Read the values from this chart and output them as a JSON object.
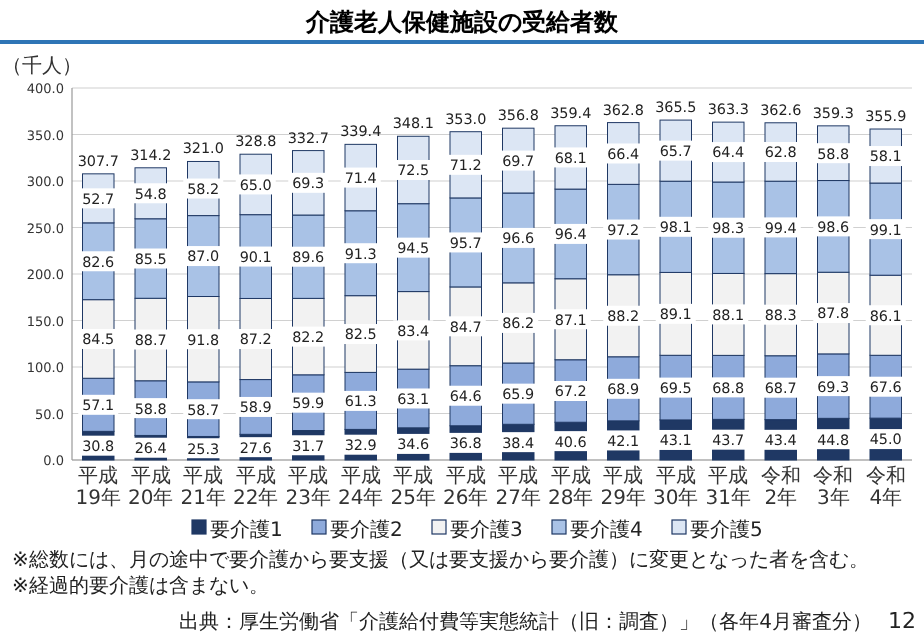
{
  "chart_data": {
    "type": "bar",
    "stacked": true,
    "title": "介護老人保健施設の受給者数",
    "ylabel": "（千人）",
    "categories": [
      "平成19年",
      "平成20年",
      "平成21年",
      "平成22年",
      "平成23年",
      "平成24年",
      "平成25年",
      "平成26年",
      "平成27年",
      "平成28年",
      "平成29年",
      "平成30年",
      "平成31年",
      "令和2年",
      "令和3年",
      "令和4年"
    ],
    "series": [
      {
        "name": "要介護1",
        "color": "#1f3864",
        "values": [
          30.8,
          26.4,
          25.3,
          27.6,
          31.7,
          32.9,
          34.6,
          36.8,
          38.4,
          40.6,
          42.1,
          43.1,
          43.7,
          43.4,
          44.8,
          45.0
        ],
        "value_labels": [
          "30.8",
          "26.4",
          "25.3",
          "27.6",
          "31.7",
          "32.9",
          "34.6",
          "36.8",
          "38.4",
          "40.6",
          "42.1",
          "43.1",
          "43.7",
          "43.4",
          "44.8",
          "45.0"
        ]
      },
      {
        "name": "要介護2",
        "color": "#8eaadb",
        "values": [
          57.1,
          58.8,
          58.7,
          58.9,
          59.9,
          61.3,
          63.1,
          64.6,
          65.9,
          67.2,
          68.9,
          69.5,
          68.8,
          68.7,
          69.3,
          67.6
        ],
        "value_labels": [
          "57.1",
          "58.8",
          "58.7",
          "58.9",
          "59.9",
          "61.3",
          "63.1",
          "64.6",
          "65.9",
          "67.2",
          "68.9",
          "69.5",
          "68.8",
          "68.7",
          "69.3",
          "67.6"
        ]
      },
      {
        "name": "要介護3",
        "color": "#f2f2f2",
        "values": [
          84.5,
          88.7,
          91.8,
          87.2,
          82.2,
          82.5,
          83.4,
          84.7,
          86.2,
          87.1,
          88.2,
          89.1,
          88.1,
          88.3,
          87.8,
          86.1
        ],
        "value_labels": [
          "84.5",
          "88.7",
          "91.8",
          "87.2",
          "82.2",
          "82.5",
          "83.4",
          "84.7",
          "86.2",
          "87.1",
          "88.2",
          "89.1",
          "88.1",
          "88.3",
          "87.8",
          "86.1"
        ]
      },
      {
        "name": "要介護4",
        "color": "#a9c2e6",
        "values": [
          82.6,
          85.5,
          87.0,
          90.1,
          89.6,
          91.3,
          94.5,
          95.7,
          96.6,
          96.4,
          97.2,
          98.1,
          98.3,
          99.4,
          98.6,
          99.1
        ],
        "value_labels": [
          "82.6",
          "85.5",
          "87.0",
          "90.1",
          "89.6",
          "91.3",
          "94.5",
          "95.7",
          "96.6",
          "96.4",
          "97.2",
          "98.1",
          "98.3",
          "99.4",
          "98.6",
          "99.1"
        ]
      },
      {
        "name": "要介護5",
        "color": "#dce6f4",
        "values": [
          52.7,
          54.8,
          58.2,
          65.0,
          69.3,
          71.4,
          72.5,
          71.2,
          69.7,
          68.1,
          66.4,
          65.7,
          64.4,
          62.8,
          58.8,
          58.1
        ],
        "value_labels": [
          "52.7",
          "54.8",
          "58.2",
          "65.0",
          "69.3",
          "71.4",
          "72.5",
          "71.2",
          "69.7",
          "68.1",
          "66.4",
          "65.7",
          "64.4",
          "62.8",
          "58.8",
          "58.1"
        ]
      }
    ],
    "totals": [
      "307.7",
      "314.2",
      "321.0",
      "328.8",
      "332.7",
      "339.4",
      "348.1",
      "353.0",
      "356.8",
      "359.4",
      "362.8",
      "365.5",
      "363.3",
      "362.6",
      "359.3",
      "355.9"
    ],
    "ylim": [
      0,
      400
    ],
    "yticks": [
      {
        "value": 0,
        "label": "0.0"
      },
      {
        "value": 50,
        "label": "50.0"
      },
      {
        "value": 100,
        "label": "100.0"
      },
      {
        "value": 150,
        "label": "150.0"
      },
      {
        "value": 200,
        "label": "200.0"
      },
      {
        "value": 250,
        "label": "250.0"
      },
      {
        "value": 300,
        "label": "300.0"
      },
      {
        "value": 350,
        "label": "350.0"
      },
      {
        "value": 400,
        "label": "400.0"
      }
    ],
    "grid": "y",
    "legend": "bottom",
    "annotations": [
      "※総数には、月の途中で要介護から要支援（又は要支援から要介護）に変更となった者を含む。",
      "※経過的要介護は含まない。",
      "出典：厚生労働省「介護給付費等実態統計（旧：調査）」（各年4月審査分）",
      "12"
    ]
  }
}
